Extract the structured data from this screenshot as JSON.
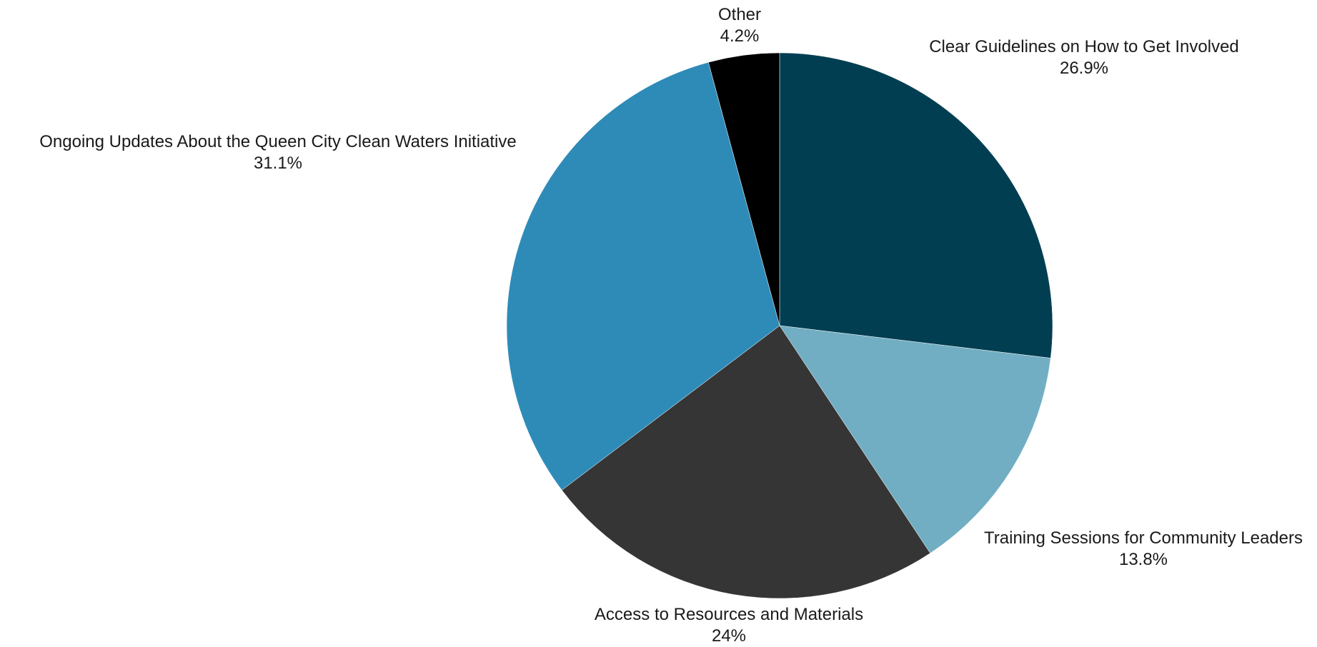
{
  "chart_data": {
    "type": "pie",
    "title": "",
    "start_angle_deg": 0,
    "direction": "clockwise",
    "slices": [
      {
        "label": "Clear Guidelines on How to Get Involved",
        "value": 26.9,
        "value_label": "26.9%",
        "color": "#023e51"
      },
      {
        "label": "Training Sessions for Community Leaders",
        "value": 13.8,
        "value_label": "13.8%",
        "color": "#71aec3"
      },
      {
        "label": "Access to Resources and Materials",
        "value": 24,
        "value_label": "24%",
        "color": "#353535"
      },
      {
        "label": "Ongoing Updates About the Queen City Clean Waters Initiative",
        "value": 31.1,
        "value_label": "31.1%",
        "color": "#2e8bb8"
      },
      {
        "label": "Other",
        "value": 4.2,
        "value_label": "4.2%",
        "color": "#000000"
      }
    ]
  }
}
